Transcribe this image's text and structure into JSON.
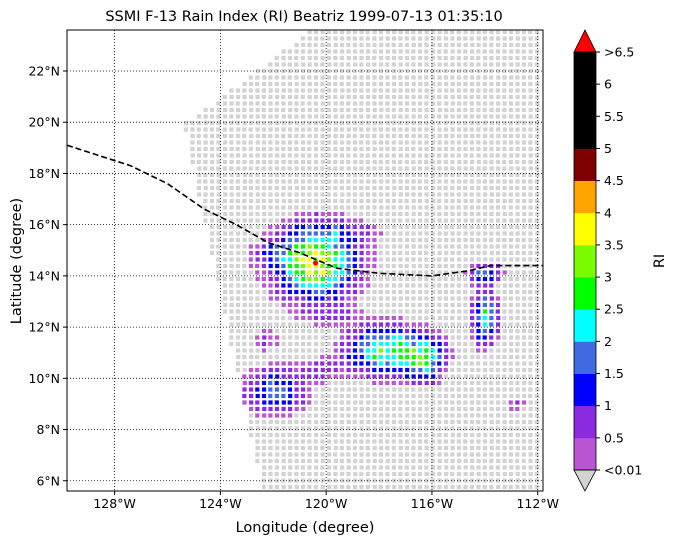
{
  "chart_data": {
    "type": "heatmap",
    "title": "SSMI F-13 Rain Index (RI) Beatriz 1999-07-13 01:35:10",
    "xlabel": "Longitude (degree)",
    "ylabel": "Latitude (degree)",
    "xlim": [
      -129.8,
      -111.8
    ],
    "ylim": [
      5.6,
      23.6
    ],
    "x_ticks": [
      {
        "value": -128,
        "label": "128°W"
      },
      {
        "value": -124,
        "label": "124°W"
      },
      {
        "value": -120,
        "label": "120°W"
      },
      {
        "value": -116,
        "label": "116°W"
      },
      {
        "value": -112,
        "label": "112°W"
      }
    ],
    "y_ticks": [
      {
        "value": 6,
        "label": "6°N"
      },
      {
        "value": 8,
        "label": "8°N"
      },
      {
        "value": 10,
        "label": "10°N"
      },
      {
        "value": 12,
        "label": "12°N"
      },
      {
        "value": 14,
        "label": "14°N"
      },
      {
        "value": 16,
        "label": "16°N"
      },
      {
        "value": 18,
        "label": "18°N"
      },
      {
        "value": 20,
        "label": "20°N"
      },
      {
        "value": 22,
        "label": "22°N"
      }
    ],
    "grid": true,
    "colorbar": {
      "label": "RI",
      "under_color": "#d3d3d3",
      "over_color": "#ff0000",
      "under_label": "<0.01",
      "over_label": ">6.5",
      "boundaries": [
        "0.5",
        "1",
        "1.5",
        "2",
        "2.5",
        "3",
        "3.5",
        "4",
        "4.5",
        "5",
        "5.5",
        "6"
      ],
      "colors": [
        "#ba55d3",
        "#8a2be2",
        "#0000ff",
        "#4169e1",
        "#00ffff",
        "#00ff00",
        "#7cfc00",
        "#ffff00",
        "#ffa500",
        "#800000",
        "#000000",
        "#000000",
        "#000000"
      ]
    },
    "swath": {
      "no_rain_color": "#d3d3d3",
      "corners_lon_lat": [
        [
          -125.2,
          20.0
        ],
        [
          -120.6,
          23.6
        ],
        [
          -111.8,
          23.6
        ],
        [
          -111.8,
          5.6
        ],
        [
          -122.4,
          5.6
        ],
        [
          -125.4,
          20.0
        ]
      ]
    },
    "rain_cells": [
      {
        "lon": -120.4,
        "lat": 14.5,
        "rx": 1.6,
        "ry": 1.5,
        "peak": 3.4
      },
      {
        "lon": -121.7,
        "lat": 14.8,
        "rx": 1.2,
        "ry": 0.6,
        "peak": 0.7
      },
      {
        "lon": -119.4,
        "lat": 15.7,
        "rx": 1.8,
        "ry": 0.5,
        "peak": 0.6
      },
      {
        "lon": -117.8,
        "lat": 11.1,
        "rx": 1.5,
        "ry": 1.0,
        "peak": 2.6
      },
      {
        "lon": -116.3,
        "lat": 10.8,
        "rx": 0.8,
        "ry": 0.9,
        "peak": 2.4
      },
      {
        "lon": -114.0,
        "lat": 12.4,
        "rx": 0.5,
        "ry": 1.1,
        "peak": 2.3
      },
      {
        "lon": -114.0,
        "lat": 14.1,
        "rx": 0.7,
        "ry": 0.4,
        "peak": 1.6
      },
      {
        "lon": -121.9,
        "lat": 9.5,
        "rx": 1.2,
        "ry": 0.9,
        "peak": 1.8
      },
      {
        "lon": -120.2,
        "lat": 10.3,
        "rx": 1.0,
        "ry": 0.5,
        "peak": 0.7
      },
      {
        "lon": -119.8,
        "lat": 12.4,
        "rx": 1.2,
        "ry": 0.3,
        "peak": 0.6
      },
      {
        "lon": -112.8,
        "lat": 9.0,
        "rx": 0.4,
        "ry": 0.3,
        "peak": 0.7
      },
      {
        "lon": -122.3,
        "lat": 11.5,
        "rx": 0.6,
        "ry": 0.5,
        "peak": 0.6
      }
    ],
    "storm_center": {
      "lon": -120.4,
      "lat": 14.5,
      "color": "#ff0000"
    },
    "track": {
      "style": "dashed",
      "color": "#000000",
      "points": [
        [
          -129.8,
          19.1
        ],
        [
          -128.6,
          18.7
        ],
        [
          -127.4,
          18.3
        ],
        [
          -126.0,
          17.6
        ],
        [
          -124.6,
          16.6
        ],
        [
          -123.4,
          16.0
        ],
        [
          -122.2,
          15.3
        ],
        [
          -121.0,
          14.9
        ],
        [
          -119.6,
          14.3
        ],
        [
          -118.0,
          14.1
        ],
        [
          -116.0,
          14.0
        ],
        [
          -114.6,
          14.2
        ],
        [
          -113.8,
          14.4
        ],
        [
          -111.8,
          14.4
        ]
      ]
    }
  }
}
